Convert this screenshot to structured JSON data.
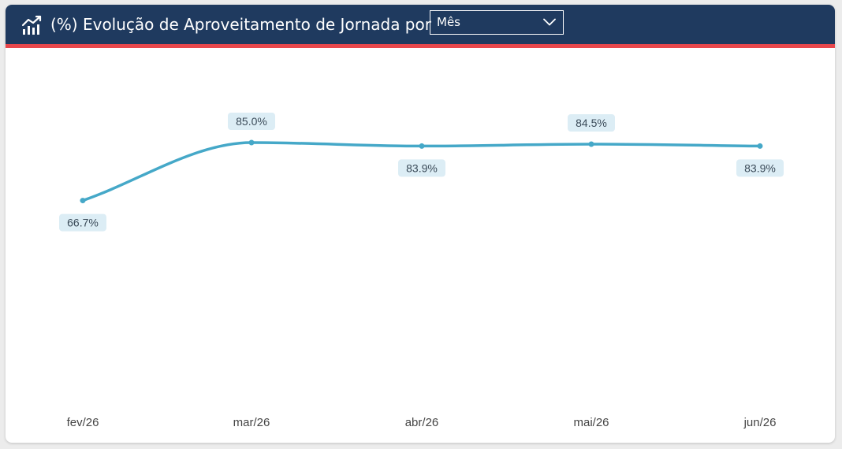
{
  "header": {
    "title": "(%) Evolução de Aproveitamento de Jornada por",
    "period_value": "Mês",
    "icon": "line-chart-icon",
    "chevron_icon": "chevron-down-icon"
  },
  "colors": {
    "header_bg": "#1f3a5f",
    "accent": "#e8474c",
    "line": "#45a8c8",
    "label_bg": "#dcedf5",
    "label_text": "#3b4b59",
    "axis_text": "#444444"
  },
  "chart_data": {
    "type": "line",
    "title": "(%) Evolução de Aproveitamento de Jornada por Mês",
    "xlabel": "",
    "ylabel": "",
    "categories": [
      "fev/26",
      "mar/26",
      "abr/26",
      "mai/26",
      "jun/26"
    ],
    "series": [
      {
        "values": [
          66.7,
          85.0,
          83.9,
          84.5,
          83.9
        ],
        "labels": [
          "66.7%",
          "85.0%",
          "83.9%",
          "84.5%",
          "83.9%"
        ],
        "label_positions": [
          "below",
          "above",
          "below",
          "above",
          "below"
        ]
      }
    ],
    "grid": false,
    "legend": "none"
  }
}
